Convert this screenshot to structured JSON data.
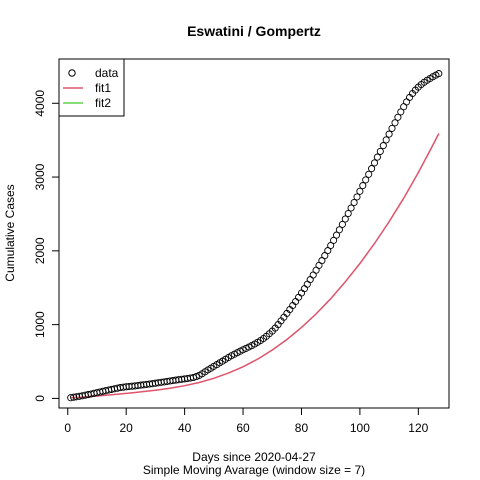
{
  "chart_data": {
    "type": "scatter",
    "title": "Eswatini / Gompertz",
    "xlabel": "Days since 2020-04-27",
    "sublabel": "Simple Moving Avarage (window size = 7)",
    "ylabel": "Cumulative Cases",
    "xlim": [
      -3,
      130.5
    ],
    "ylim": [
      -130,
      4600
    ],
    "x_ticks": [
      0,
      20,
      40,
      60,
      80,
      100,
      120
    ],
    "y_ticks": [
      0,
      1000,
      2000,
      3000,
      4000
    ],
    "legend": {
      "position": "top-left",
      "entries": [
        {
          "label": "data",
          "symbol": "circle",
          "color": "#000000"
        },
        {
          "label": "fit1",
          "symbol": "line",
          "color": "#DF536B"
        },
        {
          "label": "fit2",
          "symbol": "line",
          "color": "#61D04F"
        }
      ]
    },
    "series": [
      {
        "name": "data",
        "kind": "points",
        "color": "#000000",
        "x": [
          1,
          2,
          3,
          4,
          5,
          6,
          7,
          8,
          9,
          10,
          11,
          12,
          13,
          14,
          15,
          16,
          17,
          18,
          19,
          20,
          21,
          22,
          23,
          24,
          25,
          26,
          27,
          28,
          29,
          30,
          31,
          32,
          33,
          34,
          35,
          36,
          37,
          38,
          39,
          40,
          41,
          42,
          43,
          44,
          45,
          46,
          47,
          48,
          49,
          50,
          51,
          52,
          53,
          54,
          55,
          56,
          57,
          58,
          59,
          60,
          61,
          62,
          63,
          64,
          65,
          66,
          67,
          68,
          69,
          70,
          71,
          72,
          73,
          74,
          75,
          76,
          77,
          78,
          79,
          80,
          81,
          82,
          83,
          84,
          85,
          86,
          87,
          88,
          89,
          90,
          91,
          92,
          93,
          94,
          95,
          96,
          97,
          98,
          99,
          100,
          101,
          102,
          103,
          104,
          105,
          106,
          107,
          108,
          109,
          110,
          111,
          112,
          113,
          114,
          115,
          116,
          117,
          118,
          119,
          120,
          121,
          122,
          123,
          124,
          125,
          126,
          127
        ],
        "y": [
          10,
          16,
          22,
          29,
          36,
          43,
          51,
          60,
          69,
          78,
          87,
          96,
          105,
          114,
          122,
          130,
          138,
          146,
          152,
          157,
          162,
          166,
          170,
          175,
          180,
          185,
          190,
          195,
          200,
          206,
          212,
          218,
          224,
          230,
          236,
          242,
          248,
          254,
          259,
          264,
          270,
          276,
          284,
          295,
          312,
          334,
          360,
          386,
          410,
          434,
          458,
          482,
          506,
          530,
          554,
          577,
          599,
          620,
          640,
          659,
          678,
          697,
          716,
          737,
          760,
          785,
          812,
          842,
          875,
          912,
          953,
          1000,
          1050,
          1100,
          1152,
          1205,
          1259,
          1314,
          1370,
          1428,
          1487,
          1548,
          1610,
          1673,
          1737,
          1802,
          1868,
          1935,
          2003,
          2072,
          2142,
          2213,
          2285,
          2358,
          2432,
          2506,
          2580,
          2655,
          2731,
          2807,
          2884,
          2961,
          3038,
          3115,
          3192,
          3270,
          3348,
          3426,
          3504,
          3582,
          3659,
          3735,
          3810,
          3883,
          3953,
          4019,
          4079,
          4132,
          4179,
          4219,
          4254,
          4284,
          4311,
          4336,
          4360,
          4382,
          4402
        ]
      },
      {
        "name": "fit1",
        "kind": "line",
        "color": "#DF536B",
        "x": [
          1,
          5,
          10,
          15,
          20,
          25,
          30,
          35,
          40,
          45,
          50,
          55,
          60,
          65,
          70,
          75,
          80,
          85,
          90,
          95,
          100,
          105,
          110,
          115,
          120,
          125,
          127
        ],
        "y": [
          8,
          18,
          33,
          50,
          68,
          88,
          111,
          138,
          172,
          216,
          272,
          343,
          429,
          533,
          656,
          799,
          962,
          1146,
          1352,
          1580,
          1829,
          2100,
          2395,
          2714,
          3060,
          3434,
          3590
        ]
      },
      {
        "name": "fit2",
        "kind": "line",
        "color": "#61D04F",
        "x": [],
        "y": []
      }
    ],
    "grid": false
  }
}
